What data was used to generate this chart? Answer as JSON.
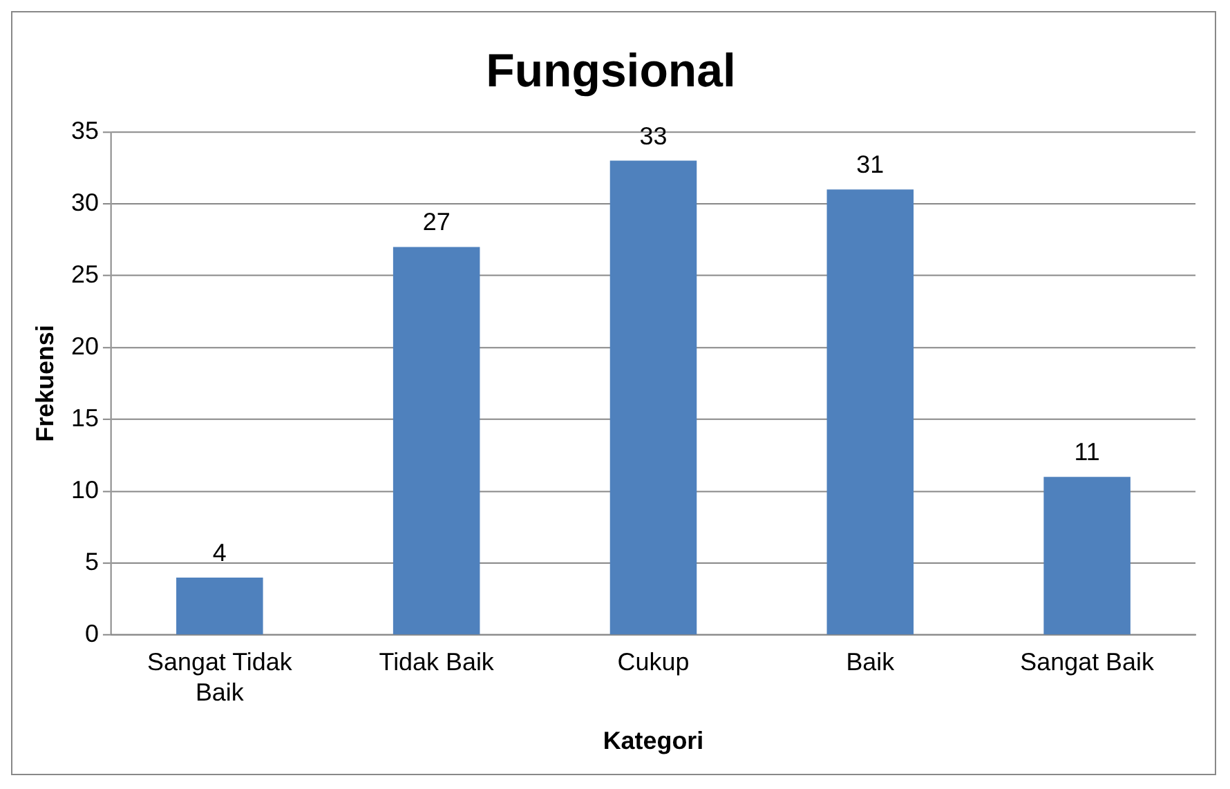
{
  "chart_data": {
    "type": "bar",
    "title": "Fungsional",
    "xlabel": "Kategori",
    "ylabel": "Frekuensi",
    "categories": [
      "Sangat Tidak Baik",
      "Tidak Baik",
      "Cukup",
      "Baik",
      "Sangat Baik"
    ],
    "values": [
      4,
      27,
      33,
      31,
      11
    ],
    "color": "#4f81bd",
    "ylim": [
      0,
      35
    ],
    "yticks": [
      0,
      5,
      10,
      15,
      20,
      25,
      30,
      35
    ],
    "grid": "y",
    "data_labels": true
  }
}
